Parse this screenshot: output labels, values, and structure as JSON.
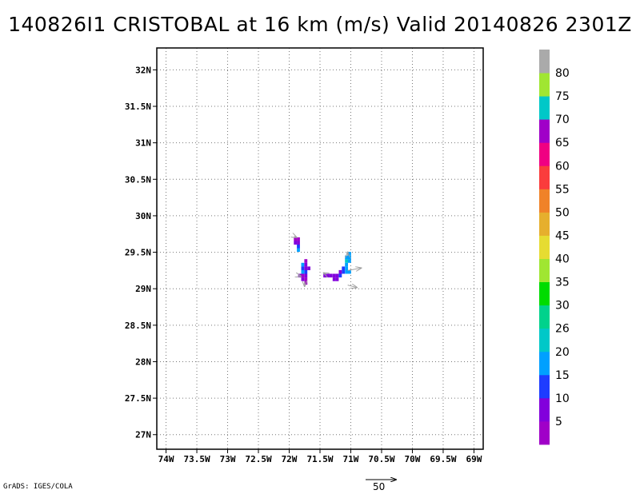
{
  "title": "140826I1 CRISTOBAL at 16 km (m/s) Valid 20140826 2301Z",
  "credit": "GrADS: IGES/COLA",
  "map": {
    "lon_range": [
      -74.15,
      -68.85
    ],
    "lat_range": [
      26.8,
      32.3
    ],
    "lon_ticks": [
      {
        "v": -74,
        "label": "74W"
      },
      {
        "v": -73.5,
        "label": "73.5W"
      },
      {
        "v": -73,
        "label": "73W"
      },
      {
        "v": -72.5,
        "label": "72.5W"
      },
      {
        "v": -72,
        "label": "72W"
      },
      {
        "v": -71.5,
        "label": "71.5W"
      },
      {
        "v": -71,
        "label": "71W"
      },
      {
        "v": -70.5,
        "label": "70.5W"
      },
      {
        "v": -70,
        "label": "70W"
      },
      {
        "v": -69.5,
        "label": "69.5W"
      },
      {
        "v": -69,
        "label": "69W"
      }
    ],
    "lat_ticks": [
      {
        "v": 32,
        "label": "32N"
      },
      {
        "v": 31.5,
        "label": "31.5N"
      },
      {
        "v": 31,
        "label": "31N"
      },
      {
        "v": 30.5,
        "label": "30.5N"
      },
      {
        "v": 30,
        "label": "30N"
      },
      {
        "v": 29.5,
        "label": "29.5N"
      },
      {
        "v": 29,
        "label": "29N"
      },
      {
        "v": 28.5,
        "label": "28.5N"
      },
      {
        "v": 28,
        "label": "28N"
      },
      {
        "v": 27.5,
        "label": "27.5N"
      },
      {
        "v": 27,
        "label": "27N"
      }
    ],
    "grid": "dotted",
    "cell_deg": [
      0.05,
      0.05
    ],
    "cells": [
      {
        "lon": -71.9,
        "lat": 29.68,
        "c": "#a000c8"
      },
      {
        "lon": -71.85,
        "lat": 29.68,
        "c": "#a000c8"
      },
      {
        "lon": -71.9,
        "lat": 29.63,
        "c": "#8200dc"
      },
      {
        "lon": -71.85,
        "lat": 29.63,
        "c": "#8200dc"
      },
      {
        "lon": -71.85,
        "lat": 29.58,
        "c": "#1e3cff"
      },
      {
        "lon": -71.85,
        "lat": 29.53,
        "c": "#00a0ff"
      },
      {
        "lon": -71.73,
        "lat": 29.38,
        "c": "#a000c8"
      },
      {
        "lon": -71.78,
        "lat": 29.33,
        "c": "#00a0ff"
      },
      {
        "lon": -71.73,
        "lat": 29.33,
        "c": "#8200dc"
      },
      {
        "lon": -71.78,
        "lat": 29.28,
        "c": "#1e3cff"
      },
      {
        "lon": -71.73,
        "lat": 29.28,
        "c": "#8200dc"
      },
      {
        "lon": -71.68,
        "lat": 29.28,
        "c": "#8200dc"
      },
      {
        "lon": -71.78,
        "lat": 29.23,
        "c": "#00a0ff"
      },
      {
        "lon": -71.73,
        "lat": 29.23,
        "c": "#1e3cff"
      },
      {
        "lon": -71.83,
        "lat": 29.18,
        "c": "#8200dc"
      },
      {
        "lon": -71.78,
        "lat": 29.18,
        "c": "#a000c8"
      },
      {
        "lon": -71.73,
        "lat": 29.18,
        "c": "#8200dc"
      },
      {
        "lon": -71.78,
        "lat": 29.13,
        "c": "#8200dc"
      },
      {
        "lon": -71.73,
        "lat": 29.13,
        "c": "#a000c8"
      },
      {
        "lon": -71.73,
        "lat": 29.08,
        "c": "#a000c8"
      },
      {
        "lon": -71.42,
        "lat": 29.18,
        "c": "#8200dc"
      },
      {
        "lon": -71.37,
        "lat": 29.18,
        "c": "#8200dc"
      },
      {
        "lon": -71.32,
        "lat": 29.18,
        "c": "#8200dc"
      },
      {
        "lon": -71.27,
        "lat": 29.18,
        "c": "#8200dc"
      },
      {
        "lon": -71.22,
        "lat": 29.18,
        "c": "#8200dc"
      },
      {
        "lon": -71.27,
        "lat": 29.13,
        "c": "#8200dc"
      },
      {
        "lon": -71.22,
        "lat": 29.13,
        "c": "#8200dc"
      },
      {
        "lon": -71.17,
        "lat": 29.18,
        "c": "#1e3cff"
      },
      {
        "lon": -71.17,
        "lat": 29.23,
        "c": "#8200dc"
      },
      {
        "lon": -71.12,
        "lat": 29.23,
        "c": "#1e3cff"
      },
      {
        "lon": -71.12,
        "lat": 29.28,
        "c": "#1e3cff"
      },
      {
        "lon": -71.07,
        "lat": 29.28,
        "c": "#00a0ff"
      },
      {
        "lon": -71.07,
        "lat": 29.23,
        "c": "#00a0ff"
      },
      {
        "lon": -71.02,
        "lat": 29.23,
        "c": "#00a0ff"
      },
      {
        "lon": -71.07,
        "lat": 29.33,
        "c": "#00a0ff"
      },
      {
        "lon": -71.07,
        "lat": 29.38,
        "c": "#00c8c8"
      },
      {
        "lon": -71.02,
        "lat": 29.38,
        "c": "#00a0ff"
      },
      {
        "lon": -71.07,
        "lat": 29.43,
        "c": "#00a0ff"
      },
      {
        "lon": -71.02,
        "lat": 29.43,
        "c": "#00a0ff"
      },
      {
        "lon": -71.02,
        "lat": 29.48,
        "c": "#00a0ff"
      }
    ],
    "vectors": [
      {
        "lon": -71.92,
        "lat": 29.72,
        "u": 4,
        "v": -2
      },
      {
        "lon": -71.75,
        "lat": 29.1,
        "u": 0,
        "v": -8
      },
      {
        "lon": -71.85,
        "lat": 29.18,
        "u": 4,
        "v": -1
      },
      {
        "lon": -71.4,
        "lat": 29.2,
        "u": -4,
        "v": 2
      },
      {
        "lon": -71.05,
        "lat": 29.25,
        "u": 22,
        "v": 4
      },
      {
        "lon": -71.05,
        "lat": 29.05,
        "u": 15,
        "v": -4
      },
      {
        "lon": -71.05,
        "lat": 29.45,
        "u": 0,
        "v": 6
      }
    ],
    "reference_vector": {
      "magnitude": 50,
      "label": "50"
    }
  },
  "colorbar": {
    "colors": [
      "#a000c8",
      "#8200dc",
      "#1e3cff",
      "#00a0ff",
      "#00c8c8",
      "#00d28c",
      "#00dc00",
      "#a0e632",
      "#e6dc32",
      "#e6af2d",
      "#f08228",
      "#fa3c3c",
      "#f00082",
      "#a000c8",
      "#00c8c8",
      "#a0e632",
      "#aaaaaa"
    ],
    "labels": [
      "5",
      "10",
      "15",
      "20",
      "26",
      "30",
      "35",
      "40",
      "45",
      "50",
      "55",
      "60",
      "65",
      "70",
      "75",
      "80"
    ]
  }
}
